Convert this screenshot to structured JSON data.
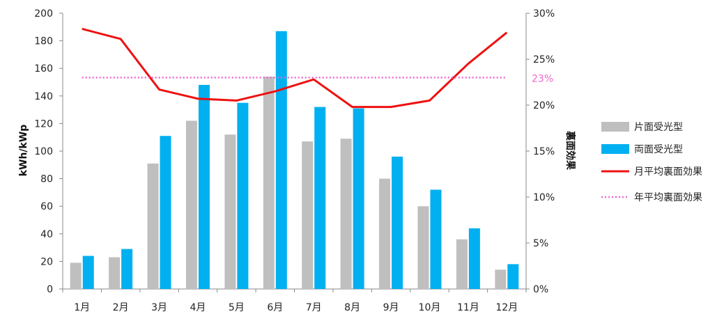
{
  "chart_data": {
    "type": "bar",
    "categories": [
      "1月",
      "2月",
      "3月",
      "4月",
      "5月",
      "6月",
      "7月",
      "8月",
      "9月",
      "10月",
      "11月",
      "12月"
    ],
    "series": [
      {
        "name": "片面受光型",
        "kind": "bar",
        "axis": "left",
        "color": "#bfbfbf",
        "values": [
          19,
          23,
          91,
          122,
          112,
          154,
          107,
          109,
          80,
          60,
          36,
          14
        ]
      },
      {
        "name": "両面受光型",
        "kind": "bar",
        "axis": "left",
        "color": "#00b0f0",
        "values": [
          24,
          29,
          111,
          148,
          135,
          187,
          132,
          131,
          96,
          72,
          44,
          18
        ]
      },
      {
        "name": "月平均裏面効果",
        "kind": "line",
        "axis": "right",
        "color": "#ee1111",
        "values": [
          28.3,
          27.2,
          21.7,
          20.7,
          20.5,
          21.5,
          22.8,
          19.8,
          19.8,
          20.5,
          24.5,
          27.9
        ]
      },
      {
        "name": "年平均裏面効果",
        "kind": "dotted-line",
        "axis": "right",
        "color": "#ee66cc",
        "values": [
          23,
          23,
          23,
          23,
          23,
          23,
          23,
          23,
          23,
          23,
          23,
          23
        ]
      }
    ],
    "y_left": {
      "label": "kWh/kWp",
      "min": 0,
      "max": 200,
      "step": 20,
      "ticks": [
        "0",
        "20",
        "40",
        "60",
        "80",
        "100",
        "120",
        "140",
        "160",
        "180",
        "200"
      ]
    },
    "y_right": {
      "label": "裏面効果",
      "min": 0,
      "max": 30,
      "step": 5,
      "ticks": [
        "0%",
        "5%",
        "10%",
        "15%",
        "20%",
        "25%",
        "30%"
      ]
    },
    "annotation": {
      "text": "23%",
      "value": 23,
      "color": "#ee66cc"
    },
    "legend": "right",
    "grid": false
  }
}
